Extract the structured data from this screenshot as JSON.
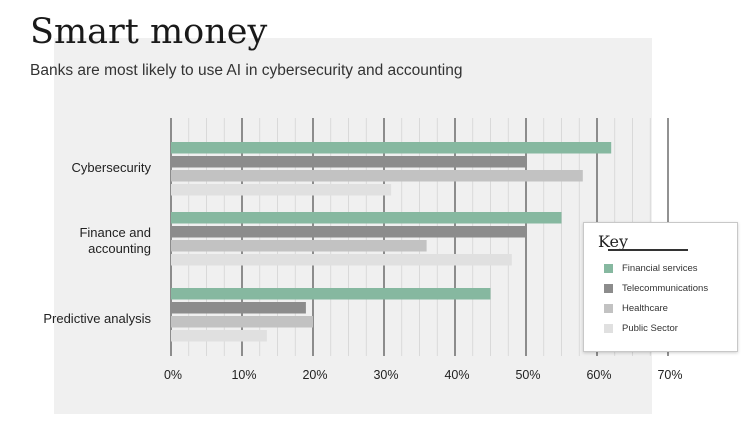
{
  "title": "Smart money",
  "subtitle": "Banks are most likely to use AI in cybersecurity and accounting",
  "legend": {
    "title": "Key",
    "items": [
      {
        "label": "Financial services",
        "color": "#86b8a0"
      },
      {
        "label": "Telecommunications",
        "color": "#8c8c8c"
      },
      {
        "label": "Healthcare",
        "color": "#c2c2c2"
      },
      {
        "label": "Public Sector",
        "color": "#e0e0e0"
      }
    ]
  },
  "chart_data": {
    "type": "bar",
    "orientation": "horizontal",
    "title": "Smart money",
    "subtitle": "Banks are most likely to use AI in cybersecurity and accounting",
    "categories": [
      [
        "Cybersecurity"
      ],
      [
        "Finance and",
        "accounting"
      ],
      [
        "Predictive analysis"
      ]
    ],
    "series": [
      {
        "name": "Financial services",
        "color": "#86b8a0",
        "values": [
          62,
          55,
          45
        ]
      },
      {
        "name": "Telecommunications",
        "color": "#8c8c8c",
        "values": [
          50,
          50,
          19
        ]
      },
      {
        "name": "Healthcare",
        "color": "#c2c2c2",
        "values": [
          58,
          36,
          20
        ]
      },
      {
        "name": "Public Sector",
        "color": "#e0e0e0",
        "values": [
          31,
          48,
          13.5
        ]
      }
    ],
    "xlim": [
      0,
      70
    ],
    "xticks": [
      0,
      10,
      20,
      30,
      40,
      50,
      60,
      70
    ],
    "xtick_labels": [
      "0%",
      "10%",
      "20%",
      "30%",
      "40%",
      "50%",
      "60%",
      "70%"
    ],
    "minor_grid_step": 2.5,
    "grid": true,
    "legend_position": "right"
  }
}
